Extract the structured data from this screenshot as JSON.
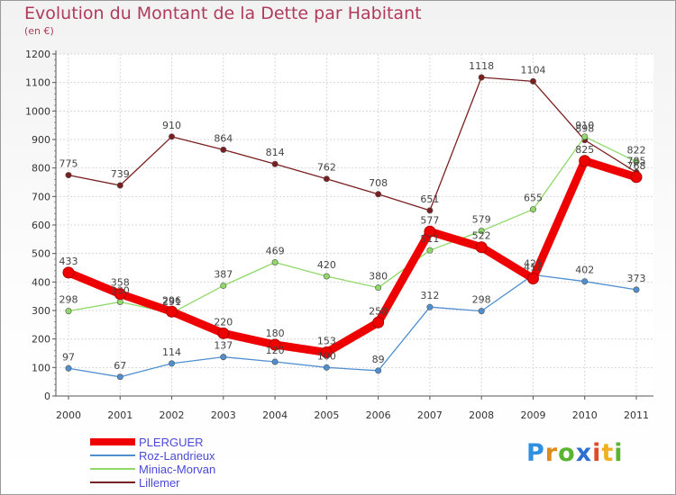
{
  "header": {
    "title": "Evolution du Montant de la Dette par Habitant",
    "subtitle": "(en €)"
  },
  "brand": {
    "letters": [
      "P",
      "r",
      "o",
      "x",
      "i",
      "t",
      "i"
    ],
    "colors": [
      "#2f8fe0",
      "#e08a1a",
      "#59b52f",
      "#2f6fd0",
      "#e04a2a",
      "#f0b020",
      "#59b52f"
    ]
  },
  "chart_data": {
    "type": "line",
    "title": "Evolution du Montant de la Dette par Habitant",
    "subtitle": "(en €)",
    "xlabel": "",
    "ylabel": "",
    "x": [
      "2000",
      "2001",
      "2002",
      "2003",
      "2004",
      "2005",
      "2006",
      "2007",
      "2008",
      "2009",
      "2010",
      "2011"
    ],
    "ylim": [
      0,
      1200
    ],
    "yticks": [
      0,
      100,
      200,
      300,
      400,
      500,
      600,
      700,
      800,
      900,
      1000,
      1100,
      1200
    ],
    "grid": true,
    "legend": "bottom-left",
    "series": [
      {
        "name": "PLERGUER",
        "color": "#ee0000",
        "values": [
          433,
          358,
          296,
          220,
          180,
          153,
          258,
          577,
          522,
          412,
          825,
          768
        ]
      },
      {
        "name": "Roz-Landrieux",
        "color": "#4f8fd0",
        "values": [
          97,
          67,
          114,
          137,
          120,
          100,
          89,
          312,
          298,
          425,
          402,
          373
        ]
      },
      {
        "name": "Miniac-Morvan",
        "color": "#90d868",
        "values": [
          298,
          330,
          291,
          387,
          469,
          420,
          380,
          511,
          579,
          655,
          910,
          822
        ]
      },
      {
        "name": "Lillemer",
        "color": "#7a1f1f",
        "values": [
          775,
          739,
          910,
          864,
          814,
          762,
          708,
          651,
          1118,
          1104,
          898,
          785
        ]
      }
    ]
  }
}
